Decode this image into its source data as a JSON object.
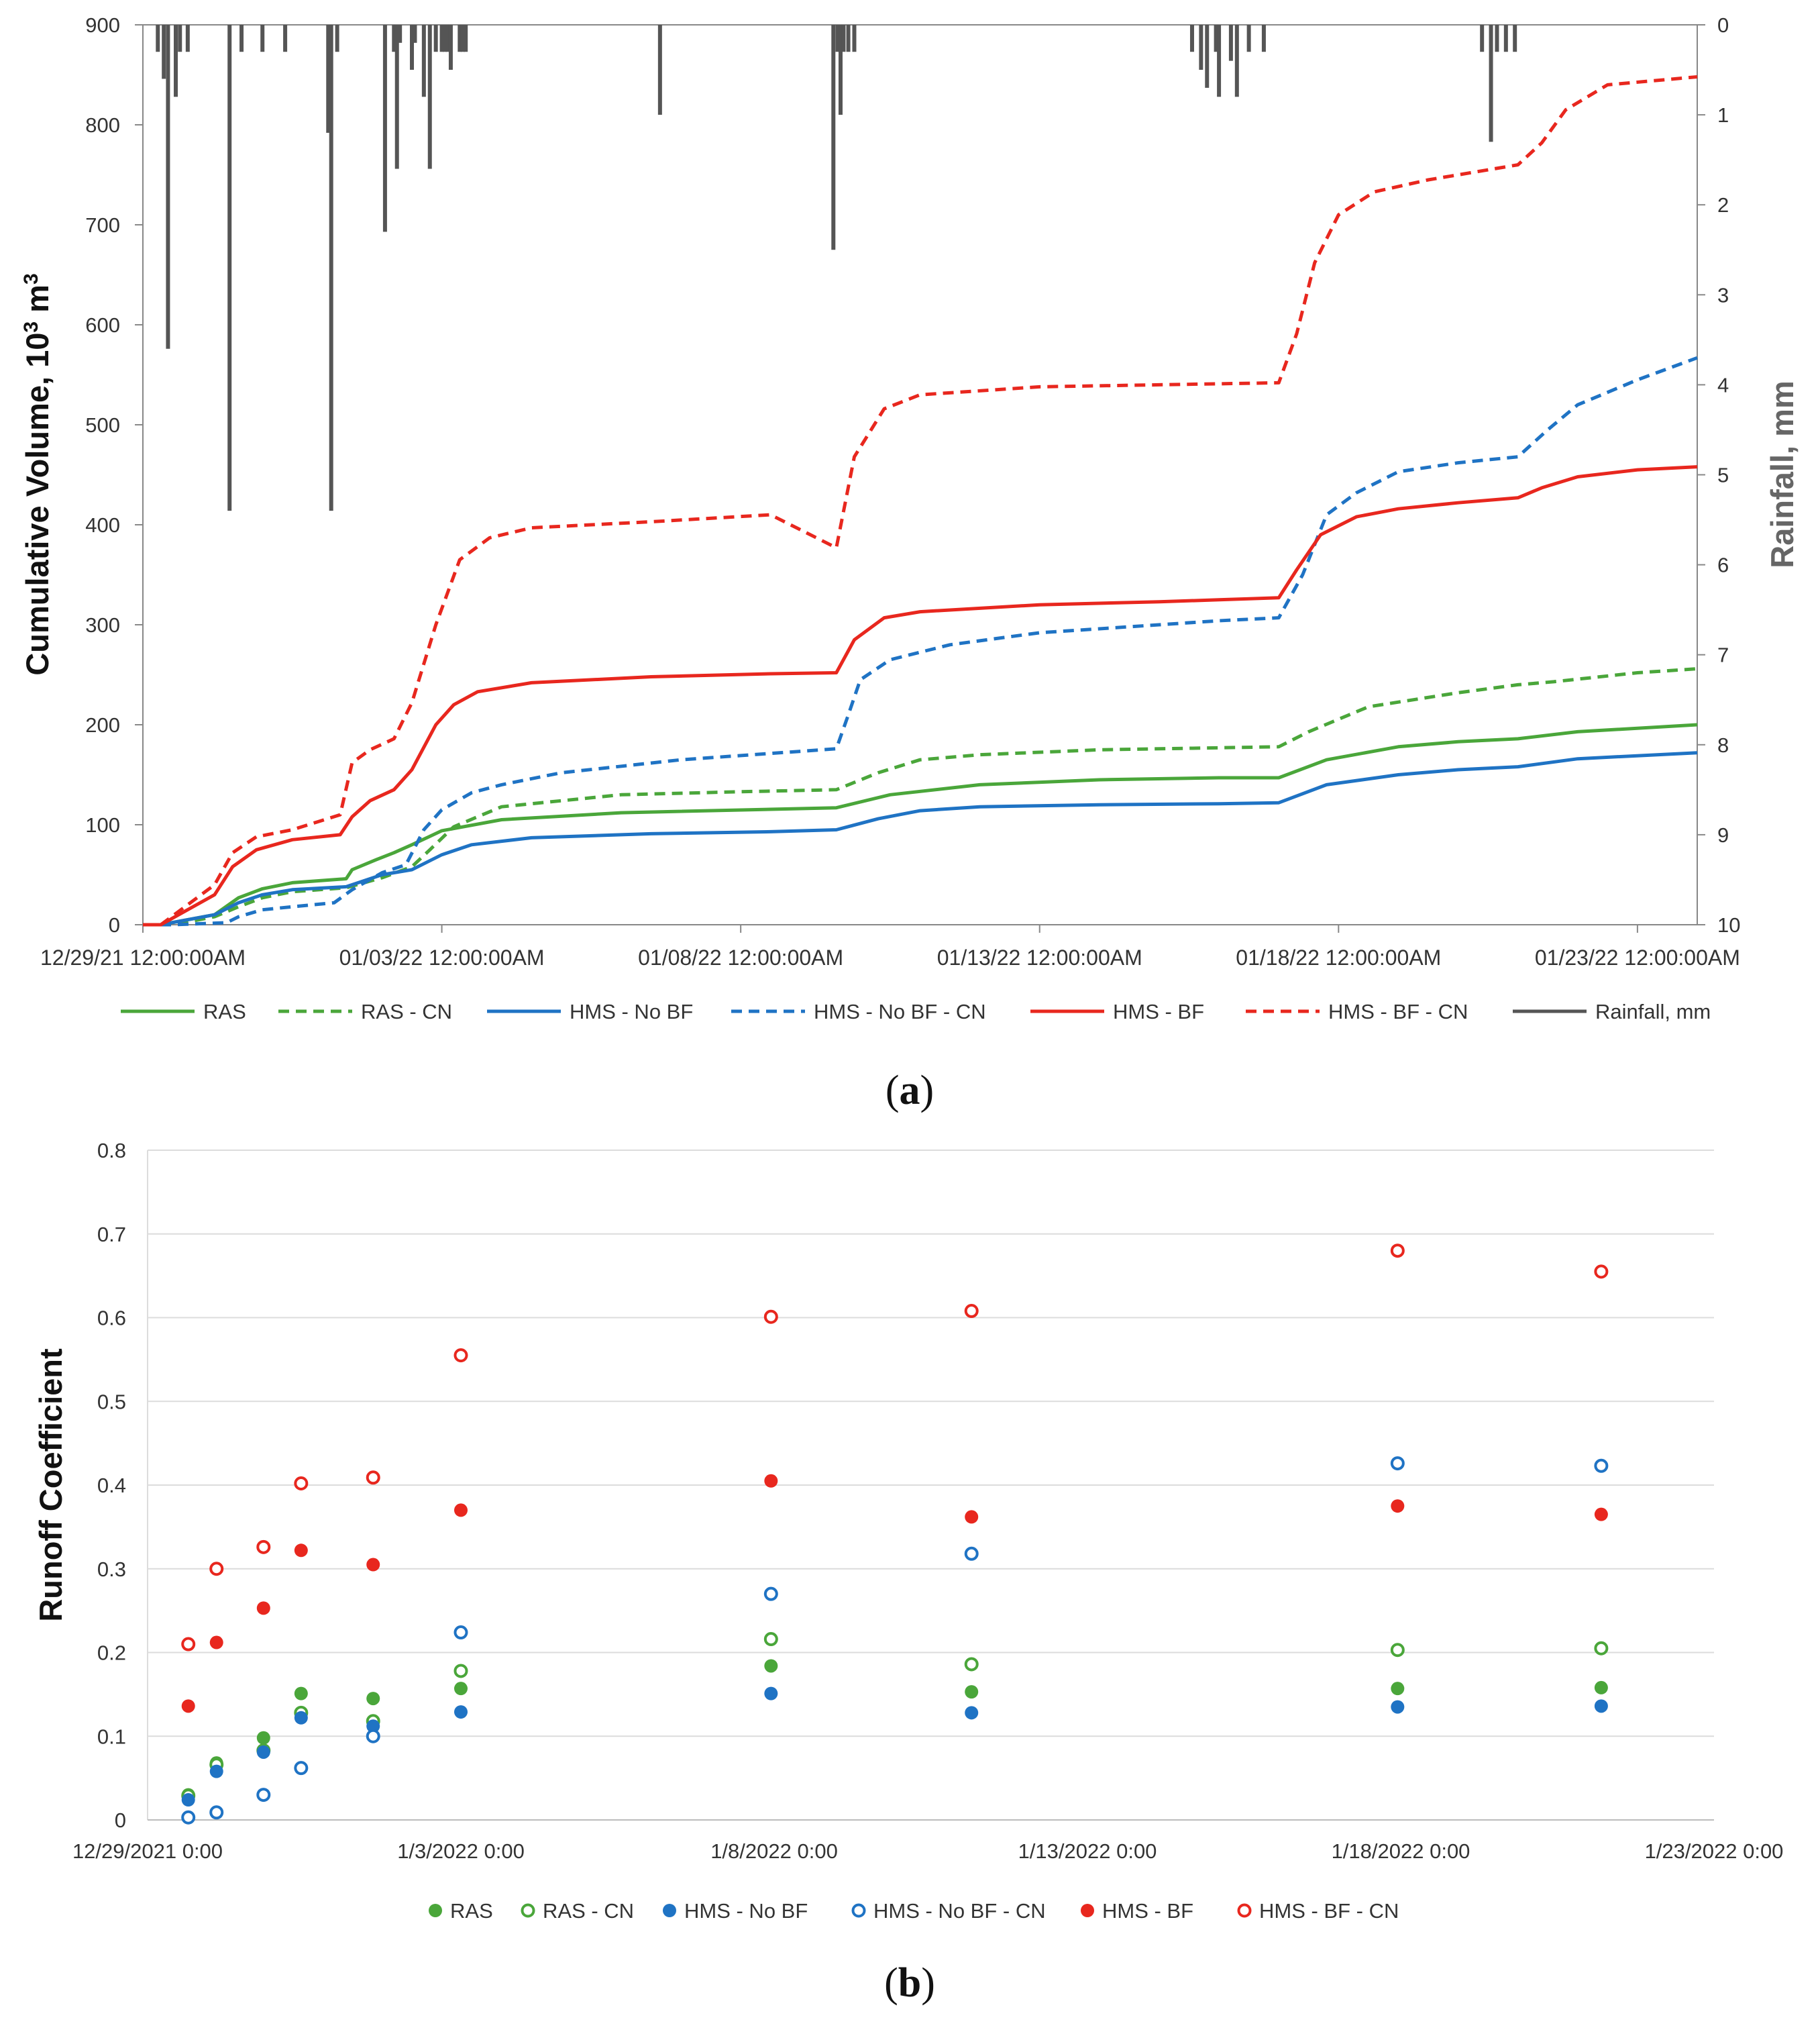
{
  "figure": {
    "label_a": "a",
    "label_b": "b"
  },
  "chart_data": [
    {
      "type": "line",
      "panel": "a",
      "ylabel": "Cumulative Volume, 10³ m³",
      "ylabel_main": "Cumulative Volume, 10",
      "ylabel_sup": "3",
      "ylabel_unit": " m",
      "ylabel_unit_sup": "3",
      "y2label": "Rainfall, mm",
      "ylim": [
        0,
        900
      ],
      "y_ticks": [
        "0",
        "100",
        "200",
        "300",
        "400",
        "500",
        "600",
        "700",
        "800",
        "900"
      ],
      "y2lim": [
        10,
        0
      ],
      "y2_ticks": [
        "0",
        "1",
        "2",
        "3",
        "4",
        "5",
        "6",
        "7",
        "8",
        "9",
        "10"
      ],
      "x_range_days": [
        0,
        26
      ],
      "x_ticks": [
        {
          "day": 0,
          "label": "12/29/21 12:00:00AM"
        },
        {
          "day": 5,
          "label": "01/03/22 12:00:00AM"
        },
        {
          "day": 10,
          "label": "01/08/22 12:00:00AM"
        },
        {
          "day": 15,
          "label": "01/13/22 12:00:00AM"
        },
        {
          "day": 20,
          "label": "01/18/22 12:00:00AM"
        },
        {
          "day": 25,
          "label": "01/23/22 12:00:00AM"
        }
      ],
      "legend": [
        "RAS",
        "RAS - CN",
        "HMS - No BF",
        "HMS - No BF - CN",
        "HMS - BF",
        "HMS - BF - CN",
        "Rainfall, mm"
      ],
      "series": [
        {
          "name": "RAS",
          "color": "#4aa63a",
          "dash": "solid",
          "x": [
            0,
            0.3,
            1.2,
            1.6,
            2.0,
            2.5,
            3.4,
            3.5,
            3.9,
            4.2,
            4.5,
            5.0,
            6.0,
            8.0,
            11.6,
            12.5,
            14,
            16,
            18.0,
            19.0,
            19.8,
            21,
            22,
            23.0,
            24,
            26
          ],
          "y": [
            0,
            0,
            10,
            27,
            36,
            42,
            46,
            55,
            65,
            72,
            80,
            94,
            105,
            112,
            117,
            130,
            140,
            145,
            147,
            147,
            165,
            178,
            183,
            186,
            193,
            200
          ]
        },
        {
          "name": "RAS - CN",
          "color": "#4aa63a",
          "dash": "dashed",
          "x": [
            0,
            0.5,
            1.2,
            1.6,
            2.0,
            2.5,
            3.4,
            4.0,
            4.5,
            4.8,
            5.2,
            6.0,
            8.0,
            10.0,
            11.6,
            12.3,
            13,
            14,
            16,
            18,
            19.0,
            19.5,
            20.5,
            22,
            23.0,
            23.6,
            25,
            26
          ],
          "y": [
            0,
            0,
            8,
            18,
            27,
            33,
            37,
            47,
            58,
            75,
            98,
            118,
            130,
            133,
            135,
            152,
            165,
            170,
            175,
            177,
            178,
            193,
            218,
            232,
            240,
            243,
            252,
            256
          ]
        },
        {
          "name": "HMS - No BF",
          "color": "#1f73c4",
          "dash": "solid",
          "x": [
            0,
            0.3,
            1.2,
            1.6,
            2.0,
            2.5,
            3.4,
            4.0,
            4.5,
            5.0,
            5.5,
            6.5,
            8.5,
            10.5,
            11.6,
            12.3,
            13,
            14,
            16,
            18.0,
            19.0,
            19.8,
            21,
            22,
            23.0,
            24,
            26
          ],
          "y": [
            0,
            0,
            10,
            22,
            30,
            35,
            38,
            50,
            55,
            70,
            80,
            87,
            91,
            93,
            95,
            106,
            114,
            118,
            120,
            121,
            122,
            140,
            150,
            155,
            158,
            166,
            172
          ]
        },
        {
          "name": "HMS - No BF - CN",
          "color": "#1f73c4",
          "dash": "dashed",
          "x": [
            0,
            0.5,
            1.4,
            1.6,
            2.0,
            2.5,
            3.2,
            3.5,
            4.0,
            4.4,
            4.7,
            5.0,
            5.5,
            6.0,
            7.0,
            9.0,
            11.6,
            11.8,
            12.0,
            12.5,
            13.5,
            15,
            17,
            18.0,
            19.0,
            19.4,
            19.8,
            20.3,
            21,
            22,
            23.0,
            23.5,
            24,
            25,
            26
          ],
          "y": [
            0,
            0,
            2,
            8,
            15,
            18,
            22,
            35,
            52,
            60,
            95,
            115,
            132,
            140,
            152,
            165,
            176,
            210,
            245,
            265,
            280,
            292,
            300,
            304,
            307,
            350,
            410,
            432,
            453,
            462,
            468,
            495,
            520,
            545,
            567
          ]
        },
        {
          "name": "HMS - BF",
          "color": "#e8271e",
          "dash": "solid",
          "x": [
            0,
            0.3,
            1.2,
            1.5,
            1.9,
            2.5,
            3.3,
            3.5,
            3.8,
            4.2,
            4.5,
            4.9,
            5.2,
            5.6,
            6.5,
            8.5,
            10.5,
            11.6,
            11.9,
            12.4,
            13,
            15,
            17,
            18.0,
            19.0,
            19.3,
            19.7,
            20.3,
            21,
            22,
            23.0,
            23.4,
            24,
            25,
            26
          ],
          "y": [
            0,
            0,
            30,
            58,
            75,
            85,
            90,
            108,
            124,
            135,
            155,
            200,
            220,
            233,
            242,
            248,
            251,
            252,
            285,
            307,
            313,
            320,
            323,
            325,
            327,
            355,
            390,
            408,
            416,
            422,
            427,
            437,
            448,
            455,
            458
          ]
        },
        {
          "name": "HMS - BF - CN",
          "color": "#e8271e",
          "dash": "dashed",
          "x": [
            0,
            0.3,
            1.2,
            1.5,
            1.9,
            2.5,
            3.3,
            3.5,
            3.8,
            4.2,
            4.5,
            4.9,
            5.3,
            5.8,
            6.5,
            8.5,
            10.5,
            11.6,
            11.9,
            12.4,
            13,
            15,
            17,
            18.0,
            19.0,
            19.3,
            19.6,
            20.0,
            20.6,
            21.5,
            23.0,
            23.4,
            23.8,
            24.5,
            26
          ],
          "y": [
            0,
            0,
            40,
            72,
            88,
            95,
            110,
            162,
            175,
            186,
            222,
            300,
            365,
            387,
            397,
            403,
            410,
            377,
            468,
            516,
            530,
            538,
            540,
            541,
            542,
            591,
            662,
            710,
            733,
            745,
            760,
            782,
            815,
            840,
            848
          ]
        },
        {
          "name": "Rainfall, mm",
          "color": "#555555",
          "dash": "bars",
          "x": [
            0.25,
            0.35,
            0.42,
            0.55,
            0.62,
            0.75,
            1.45,
            1.65,
            2.0,
            2.38,
            3.1,
            3.15,
            3.25,
            4.05,
            4.2,
            4.25,
            4.3,
            4.5,
            4.55,
            4.7,
            4.8,
            4.9,
            5.0,
            5.05,
            5.1,
            5.15,
            5.3,
            5.35,
            5.4,
            8.65,
            11.55,
            11.62,
            11.67,
            11.72,
            11.8,
            11.9,
            17.55,
            17.7,
            17.8,
            17.95,
            18.0,
            18.2,
            18.3,
            18.5,
            18.75,
            22.4,
            22.55,
            22.65,
            22.8,
            22.95
          ],
          "y": [
            0.3,
            0.6,
            3.6,
            0.8,
            0.3,
            0.3,
            5.4,
            0.3,
            0.3,
            0.3,
            1.2,
            5.4,
            0.3,
            2.3,
            0.3,
            1.6,
            0.2,
            0.5,
            0.2,
            0.8,
            1.6,
            0.3,
            0.3,
            0.3,
            0.3,
            0.5,
            0.3,
            0.3,
            0.3,
            1.0,
            2.5,
            0.3,
            1.0,
            0.3,
            0.3,
            0.3,
            0.3,
            0.5,
            0.7,
            0.3,
            0.8,
            0.4,
            0.8,
            0.3,
            0.3,
            0.3,
            1.3,
            0.3,
            0.3,
            0.3
          ]
        }
      ]
    },
    {
      "type": "scatter",
      "panel": "b",
      "ylabel": "Runoff Coefficient",
      "ylim": [
        0,
        0.8
      ],
      "y_ticks": [
        "0",
        "0.1",
        "0.2",
        "0.3",
        "0.4",
        "0.5",
        "0.6",
        "0.7",
        "0.8"
      ],
      "x_range_days": [
        0,
        25
      ],
      "x_ticks": [
        {
          "day": 0,
          "label": "12/29/2021 0:00"
        },
        {
          "day": 5,
          "label": "1/3/2022 0:00"
        },
        {
          "day": 10,
          "label": "1/8/2022 0:00"
        },
        {
          "day": 15,
          "label": "1/13/2022 0:00"
        },
        {
          "day": 20,
          "label": "1/18/2022 0:00"
        },
        {
          "day": 25,
          "label": "1/23/2022 0:00"
        }
      ],
      "x": [
        0.65,
        1.1,
        1.85,
        2.45,
        3.6,
        5.0,
        9.95,
        13.15,
        19.95,
        23.2
      ],
      "legend": [
        "RAS",
        "RAS - CN",
        "HMS - No BF",
        "HMS - No BF - CN",
        "HMS - BF",
        "HMS - BF - CN"
      ],
      "series": [
        {
          "name": "RAS",
          "color": "#4aa63a",
          "filled": true,
          "values": [
            0.03,
            0.068,
            0.098,
            0.151,
            0.145,
            0.157,
            0.184,
            0.153,
            0.157,
            0.158
          ]
        },
        {
          "name": "RAS - CN",
          "color": "#4aa63a",
          "filled": false,
          "values": [
            0.029,
            0.066,
            0.083,
            0.128,
            0.118,
            0.178,
            0.216,
            0.186,
            0.203,
            0.205
          ]
        },
        {
          "name": "HMS - No BF",
          "color": "#1f73c4",
          "filled": true,
          "values": [
            0.024,
            0.058,
            0.081,
            0.122,
            0.112,
            0.129,
            0.151,
            0.128,
            0.135,
            0.136
          ]
        },
        {
          "name": "HMS - No BF - CN",
          "color": "#1f73c4",
          "filled": false,
          "values": [
            0.003,
            0.009,
            0.03,
            0.062,
            0.1,
            0.224,
            0.27,
            0.318,
            0.426,
            0.423
          ]
        },
        {
          "name": "HMS - BF",
          "color": "#e8271e",
          "filled": true,
          "values": [
            0.136,
            0.212,
            0.253,
            0.322,
            0.305,
            0.37,
            0.405,
            0.362,
            0.375,
            0.365
          ]
        },
        {
          "name": "HMS - BF - CN",
          "color": "#e8271e",
          "filled": false,
          "values": [
            0.21,
            0.3,
            0.326,
            0.402,
            0.409,
            0.555,
            0.601,
            0.608,
            0.68,
            0.655
          ]
        }
      ]
    }
  ]
}
